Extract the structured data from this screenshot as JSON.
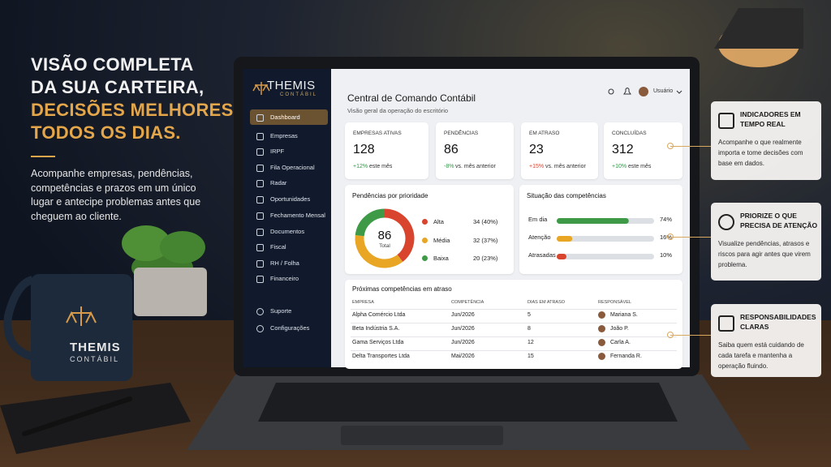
{
  "hero": {
    "title_lines": [
      "VISÃO COMPLETA",
      "DA SUA CARTEIRA,"
    ],
    "highlight_lines": [
      "DECISÕES MELHORES",
      "TODOS OS DIAS."
    ],
    "body": "Acompanhe empresas, pendências, competências e prazos em um único lugar e antecipe problemas antes que cheguem ao cliente."
  },
  "app": {
    "brand": "THEMIS",
    "brand_sub": "CONTÁBIL",
    "menu": [
      "Dashboard",
      "Empresas",
      "IRPF",
      "Fila Operacional",
      "Radar",
      "Oportunidades",
      "Fechamento Mensal",
      "Documentos",
      "Fiscal",
      "RH / Folha",
      "Financeiro"
    ],
    "menu_bottom": [
      "Suporte",
      "Configurações"
    ],
    "header": {
      "title": "Central de Comando Contábil",
      "subtitle": "Visão geral da operação do escritório",
      "user": "Usuário"
    },
    "kpis": [
      {
        "label": "EMPRESAS ATIVAS",
        "value": 128,
        "delta": "+12%",
        "delta_text": "este mês",
        "delta_color": "#2f9a45"
      },
      {
        "label": "PENDÊNCIAS",
        "value": 86,
        "delta": "-8%",
        "delta_text": "vs. mês anterior",
        "delta_color": "#2f9a45"
      },
      {
        "label": "EM ATRASO",
        "value": 23,
        "delta": "+15%",
        "delta_text": "vs. mês anterior",
        "delta_color": "#d9442f"
      },
      {
        "label": "CONCLUÍDAS",
        "value": 312,
        "delta": "+10%",
        "delta_text": "este mês",
        "delta_color": "#2f9a45"
      }
    ],
    "priority": {
      "title": "Pendências por prioridade",
      "total": 86,
      "total_label": "Total",
      "items": [
        {
          "name": "Alta",
          "value": 34,
          "value_label": "34 (40%)",
          "color": "#d9442f"
        },
        {
          "name": "Média",
          "value": 32,
          "value_label": "32 (37%)",
          "color": "#e8a624"
        },
        {
          "name": "Baixa",
          "value": 20,
          "value_label": "20 (23%)",
          "color": "#3f9a48"
        }
      ]
    },
    "status": {
      "title": "Situação das competências",
      "xlim": [
        0,
        100
      ],
      "items": [
        {
          "name": "Em dia",
          "value": 74,
          "value_label": "74%",
          "color": "#3f9a48"
        },
        {
          "name": "Atenção",
          "value": 16,
          "value_label": "16%",
          "color": "#e8a624"
        },
        {
          "name": "Atrasadas",
          "value": 10,
          "value_label": "10%",
          "color": "#d9442f"
        }
      ]
    },
    "overdue": {
      "title": "Próximas competências em atraso",
      "columns": [
        "EMPRESA",
        "COMPETÊNCIA",
        "DIAS EM ATRASO",
        "RESPONSÁVEL"
      ],
      "rows": [
        [
          "Alpha Comércio Ltda",
          "Jun/2026",
          5,
          "Mariana S."
        ],
        [
          "Beta Indústria S.A.",
          "Jun/2026",
          8,
          "João P."
        ],
        [
          "Gama Serviços Ltda",
          "Jun/2026",
          12,
          "Carla A."
        ],
        [
          "Delta Transportes Ltda",
          "Mai/2026",
          15,
          "Fernanda R."
        ]
      ]
    }
  },
  "callouts": [
    {
      "title": "INDICADORES EM TEMPO REAL",
      "text": "Acompanhe o que realmente importa e tome decisões com base em dados."
    },
    {
      "title": "PRIORIZE O QUE PRECISA DE ATENÇÃO",
      "text": "Visualize pendências, atrasos e riscos para agir antes que virem problema."
    },
    {
      "title": "RESPONSABILIDADES CLARAS",
      "text": "Saiba quem está cuidando de cada tarefa e mantenha a operação fluindo."
    }
  ],
  "mug": {
    "brand": "THEMIS",
    "sub": "CONTÁBIL"
  }
}
